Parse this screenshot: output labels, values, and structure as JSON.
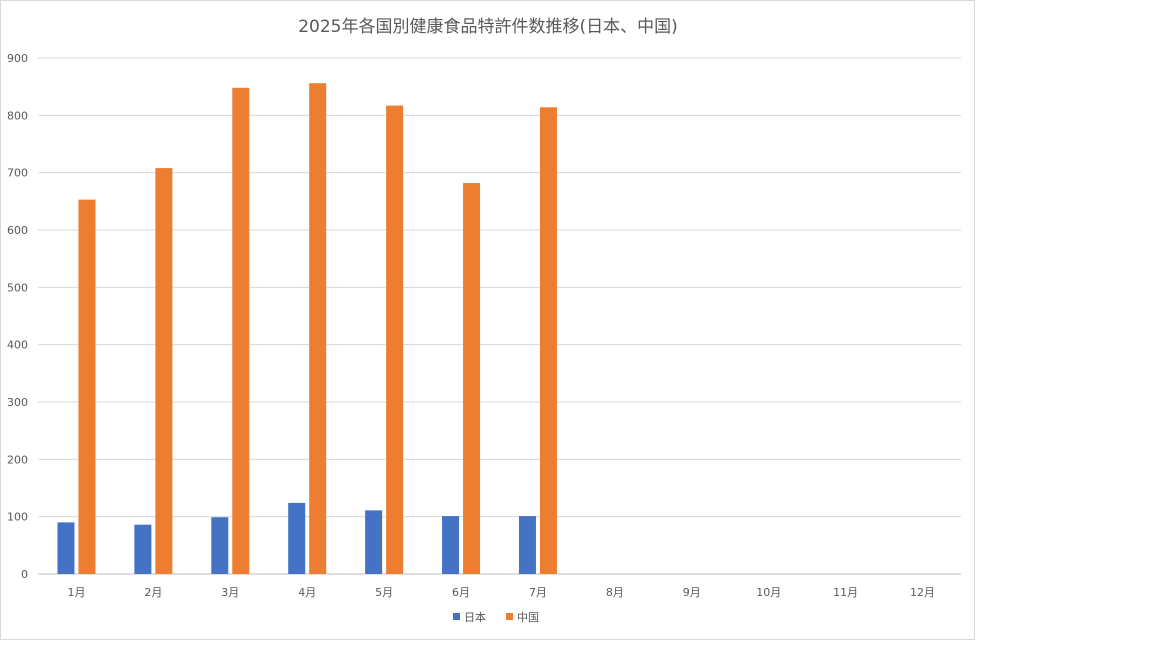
{
  "chart_data": {
    "type": "bar",
    "title": "2025年各国別健康食品特許件数推移(日本、中国)",
    "categories": [
      "1月",
      "2月",
      "3月",
      "4月",
      "5月",
      "6月",
      "7月",
      "8月",
      "9月",
      "10月",
      "11月",
      "12月"
    ],
    "series": [
      {
        "name": "日本",
        "color": "#4472c4",
        "values": [
          90,
          86,
          99,
          124,
          111,
          101,
          101,
          null,
          null,
          null,
          null,
          null
        ]
      },
      {
        "name": "中国",
        "color": "#ed7d31",
        "values": [
          653,
          708,
          848,
          856,
          817,
          682,
          814,
          null,
          null,
          null,
          null,
          null
        ]
      }
    ],
    "ylim": [
      0,
      900
    ],
    "yticks": [
      0,
      100,
      200,
      300,
      400,
      500,
      600,
      700,
      800,
      900
    ],
    "grid": true,
    "legend_position": "bottom"
  }
}
